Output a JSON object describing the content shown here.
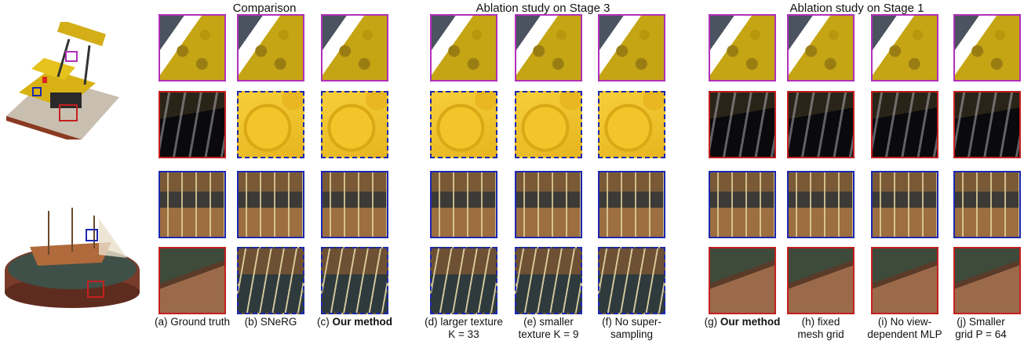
{
  "headers": {
    "comparison": "Comparison",
    "stage3": "Ablation study on Stage 3",
    "stage1": "Ablation study on Stage 1"
  },
  "captions": [
    {
      "pre": "(a) Ground truth",
      "bold": "",
      "line2": ""
    },
    {
      "pre": "(b) SNeRG",
      "bold": "",
      "line2": ""
    },
    {
      "pre": "(c) ",
      "bold": "Our method",
      "line2": ""
    },
    {
      "pre": "(d) larger texture",
      "bold": "",
      "line2": "K = 33"
    },
    {
      "pre": "(e) smaller",
      "bold": "",
      "line2": "texture K = 9"
    },
    {
      "pre": "(f) No super-",
      "bold": "",
      "line2": "sampling"
    },
    {
      "pre": "(g) ",
      "bold": "Our method",
      "line2": ""
    },
    {
      "pre": "(h) fixed",
      "bold": "",
      "line2": "mesh grid"
    },
    {
      "pre": "(i) No view-",
      "bold": "",
      "line2": "dependent MLP"
    },
    {
      "pre": "(j) Smaller",
      "bold": "",
      "line2": "grid P = 64"
    }
  ],
  "colors": {
    "magenta": "#b030b8",
    "red": "#c42020",
    "blue": "#1c28b0"
  }
}
